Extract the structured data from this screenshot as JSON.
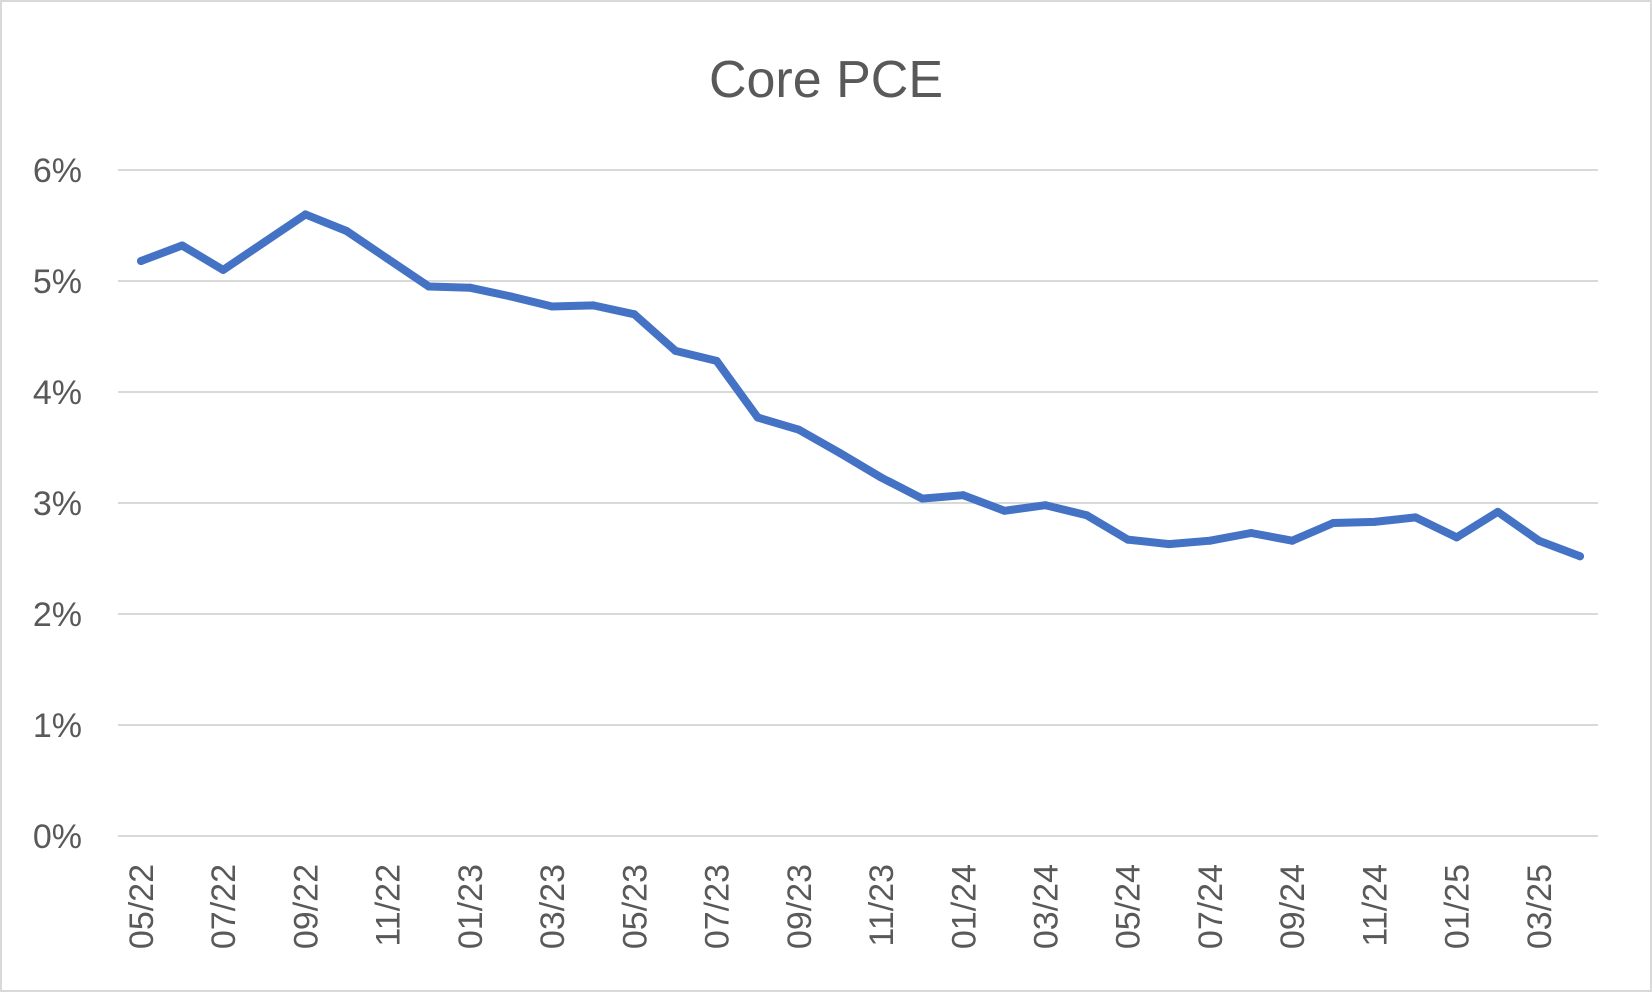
{
  "chart_data": {
    "type": "line",
    "title": "Core PCE",
    "xlabel": "",
    "ylabel": "",
    "ylim": [
      0,
      6
    ],
    "y_ticks": [
      "0%",
      "1%",
      "2%",
      "3%",
      "4%",
      "5%",
      "6%"
    ],
    "x_tick_labels": [
      "05/22",
      "07/22",
      "09/22",
      "11/22",
      "01/23",
      "03/23",
      "05/23",
      "07/23",
      "09/23",
      "11/23",
      "01/24",
      "03/24",
      "05/24",
      "07/24",
      "09/24",
      "11/24",
      "01/25",
      "03/25"
    ],
    "grid": true,
    "legend": "none",
    "line_color": "#4472c4",
    "series": [
      {
        "x": [
          "05/22",
          "06/22",
          "07/22",
          "08/22",
          "09/22",
          "10/22",
          "11/22",
          "12/22",
          "01/23",
          "02/23",
          "03/23",
          "04/23",
          "05/23",
          "06/23",
          "07/23",
          "08/23",
          "09/23",
          "10/23",
          "11/23",
          "12/23",
          "01/24",
          "02/24",
          "03/24",
          "04/24",
          "05/24",
          "06/24",
          "07/24",
          "08/24",
          "09/24",
          "10/24",
          "11/24",
          "12/24",
          "01/25",
          "02/25",
          "03/25",
          "04/25"
        ],
        "values": [
          5.18,
          5.32,
          5.1,
          5.35,
          5.6,
          5.45,
          5.2,
          4.95,
          4.94,
          4.86,
          4.77,
          4.78,
          4.7,
          4.37,
          4.28,
          3.77,
          3.66,
          3.45,
          3.23,
          3.04,
          3.07,
          2.93,
          2.98,
          2.89,
          2.67,
          2.63,
          2.66,
          2.73,
          2.66,
          2.82,
          2.83,
          2.87,
          2.69,
          2.92,
          2.66,
          2.52
        ]
      }
    ]
  }
}
